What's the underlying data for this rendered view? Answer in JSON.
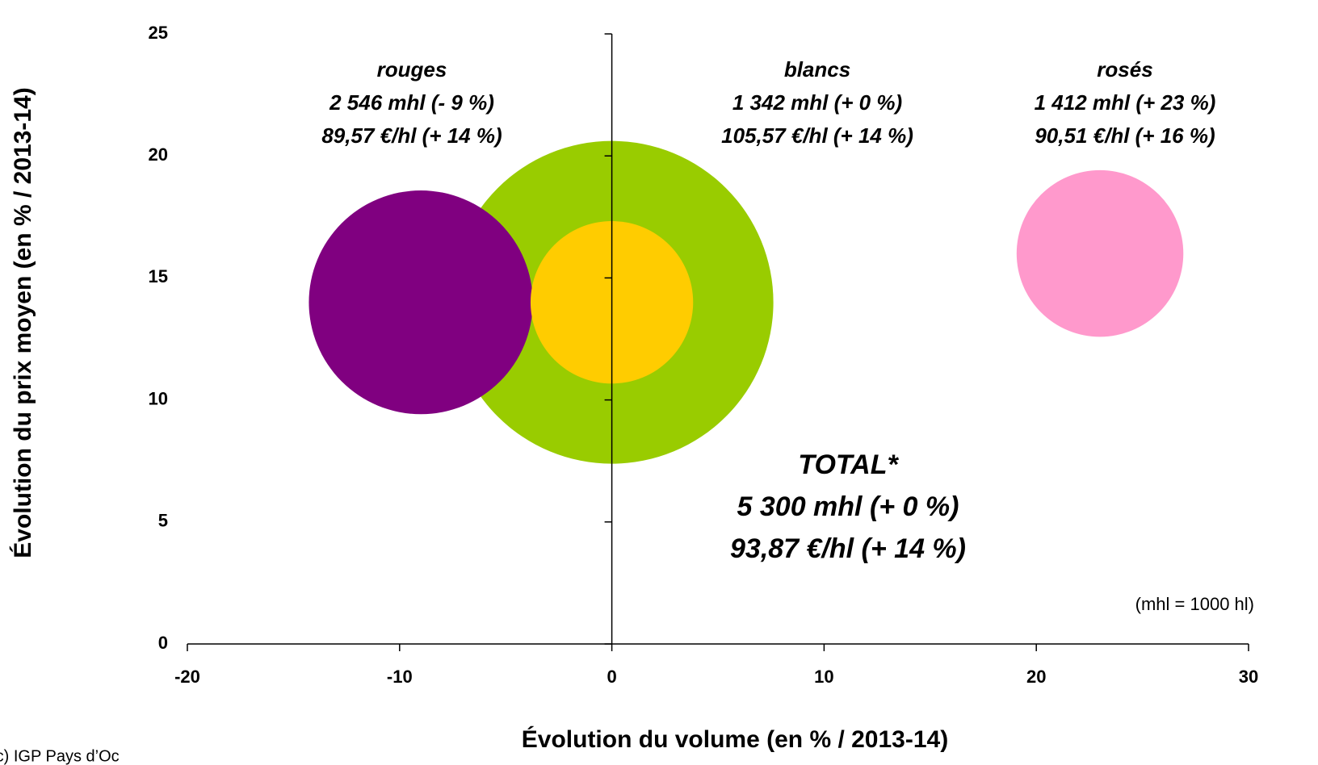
{
  "chart_data": {
    "type": "bubble",
    "xlabel": "Évolution du volume (en % / 2013-14)",
    "ylabel": "Évolution du prix moyen (en % / 2013-14)",
    "xlim": [
      -20,
      30
    ],
    "xticks": [
      -20,
      -10,
      0,
      10,
      20,
      30
    ],
    "ylim": [
      0,
      25
    ],
    "yticks": [
      0,
      5,
      10,
      15,
      20,
      25
    ],
    "series": [
      {
        "name": "TOTAL*",
        "color": "#99cc00",
        "x": 0,
        "y": 14,
        "size": 5300,
        "labels": [
          "5 300 mhl (+ 0 %)",
          "93,87 €/hl (+ 14 %)"
        ]
      },
      {
        "name": "rouges",
        "color": "#800080",
        "x": -9,
        "y": 14,
        "size": 2546,
        "labels": [
          "2 546 mhl (- 9 %)",
          "89,57 €/hl (+ 14 %)"
        ]
      },
      {
        "name": "blancs",
        "color": "#ffcc00",
        "x": 0,
        "y": 14,
        "size": 1342,
        "labels": [
          "1 342 mhl (+ 0 %)",
          "105,57 €/hl (+ 14 %)"
        ]
      },
      {
        "name": "rosés",
        "color": "#ff99cc",
        "x": 23,
        "y": 16,
        "size": 1412,
        "labels": [
          "1 412 mhl (+ 23 %)",
          "90,51 €/hl (+ 16 %)"
        ]
      }
    ],
    "note": "(mhl = 1000 hl)",
    "source": "(c) IGP Pays d’Oc"
  }
}
